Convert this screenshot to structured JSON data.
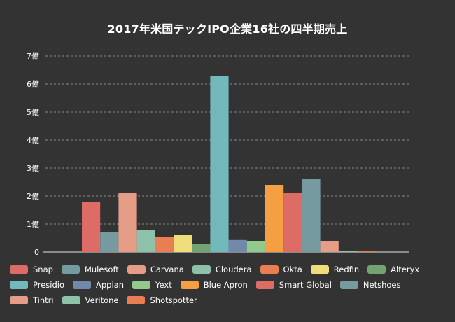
{
  "chart_data": {
    "type": "bar",
    "title": "2017年米国テックIPO企業16社の四半期売上",
    "xlabel": "",
    "ylabel": "",
    "ylim": [
      0,
      7
    ],
    "ytick_values": [
      0,
      1,
      2,
      3,
      4,
      5,
      6,
      7
    ],
    "ytick_labels": [
      "0",
      "1億",
      "2億",
      "3億",
      "4億",
      "5億",
      "6億",
      "7億"
    ],
    "grid": true,
    "legend_position": "bottom",
    "series": [
      {
        "name": "Snap",
        "value": 1.8,
        "color": "#dd6b66"
      },
      {
        "name": "Mulesoft",
        "value": 0.7,
        "color": "#759aa0"
      },
      {
        "name": "Carvana",
        "value": 2.1,
        "color": "#e69d87"
      },
      {
        "name": "Cloudera",
        "value": 0.8,
        "color": "#8dc1a9"
      },
      {
        "name": "Okta",
        "value": 0.55,
        "color": "#ea7e53"
      },
      {
        "name": "Redfin",
        "value": 0.6,
        "color": "#eedd78"
      },
      {
        "name": "Alteryx",
        "value": 0.3,
        "color": "#73a373"
      },
      {
        "name": "Presidio",
        "value": 6.3,
        "color": "#73b9bc"
      },
      {
        "name": "Appian",
        "value": 0.43,
        "color": "#7289ab"
      },
      {
        "name": "Yext",
        "value": 0.38,
        "color": "#91ca8c"
      },
      {
        "name": "Blue Apron",
        "value": 2.4,
        "color": "#f49f42"
      },
      {
        "name": "Smart Global",
        "value": 2.1,
        "color": "#dd6b66"
      },
      {
        "name": "Netshoes",
        "value": 2.6,
        "color": "#759aa0"
      },
      {
        "name": "Tintri",
        "value": 0.4,
        "color": "#e69d87"
      },
      {
        "name": "Veritone",
        "value": 0.03,
        "color": "#8dc1a9"
      },
      {
        "name": "Shotspotter",
        "value": 0.05,
        "color": "#ea7e53"
      }
    ]
  }
}
